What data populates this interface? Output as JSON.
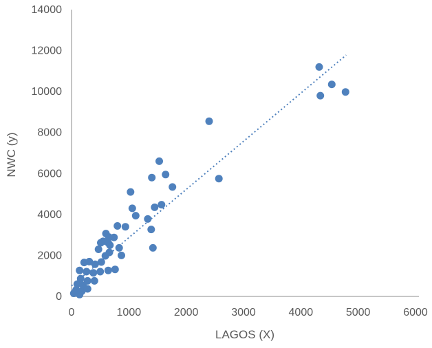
{
  "chart_data": {
    "type": "scatter",
    "title": "",
    "xlabel": "LAGOS (X)",
    "ylabel": "NWC (y)",
    "xlim": [
      0,
      6000
    ],
    "ylim": [
      0,
      14000
    ],
    "x_ticks": [
      0,
      1000,
      2000,
      3000,
      4000,
      5000,
      6000
    ],
    "y_ticks": [
      0,
      2000,
      4000,
      6000,
      8000,
      10000,
      12000,
      14000
    ],
    "grid": false,
    "legend": false,
    "marker_color": "#4F81BD",
    "axis_color": "#BFBFBF",
    "label_color": "#595959",
    "points": [
      [
        40,
        150
      ],
      [
        60,
        210
      ],
      [
        80,
        320
      ],
      [
        100,
        600
      ],
      [
        140,
        90
      ],
      [
        140,
        1270
      ],
      [
        160,
        870
      ],
      [
        180,
        260
      ],
      [
        200,
        540
      ],
      [
        220,
        1660
      ],
      [
        260,
        1210
      ],
      [
        280,
        370
      ],
      [
        280,
        760
      ],
      [
        310,
        1700
      ],
      [
        380,
        1150
      ],
      [
        400,
        760
      ],
      [
        410,
        1570
      ],
      [
        470,
        2300
      ],
      [
        500,
        1210
      ],
      [
        510,
        2620
      ],
      [
        520,
        1680
      ],
      [
        550,
        2690
      ],
      [
        590,
        1980
      ],
      [
        600,
        3070
      ],
      [
        640,
        1270
      ],
      [
        640,
        2620
      ],
      [
        650,
        2900
      ],
      [
        660,
        2150
      ],
      [
        670,
        2500
      ],
      [
        740,
        2880
      ],
      [
        760,
        1320
      ],
      [
        800,
        3440
      ],
      [
        830,
        2370
      ],
      [
        870,
        2000
      ],
      [
        940,
        3400
      ],
      [
        1030,
        5100
      ],
      [
        1060,
        4300
      ],
      [
        1120,
        3940
      ],
      [
        1330,
        3780
      ],
      [
        1390,
        3270
      ],
      [
        1400,
        5800
      ],
      [
        1420,
        2370
      ],
      [
        1450,
        4350
      ],
      [
        1530,
        6600
      ],
      [
        1570,
        4480
      ],
      [
        1640,
        5950
      ],
      [
        1760,
        5340
      ],
      [
        2400,
        8550
      ],
      [
        2570,
        5750
      ],
      [
        4320,
        11200
      ],
      [
        4340,
        9800
      ],
      [
        4540,
        10350
      ],
      [
        4780,
        9980
      ]
    ],
    "trendline": {
      "style": "dotted",
      "color": "#4F81BD",
      "from": [
        0,
        520
      ],
      "to": [
        4790,
        11780
      ]
    }
  }
}
